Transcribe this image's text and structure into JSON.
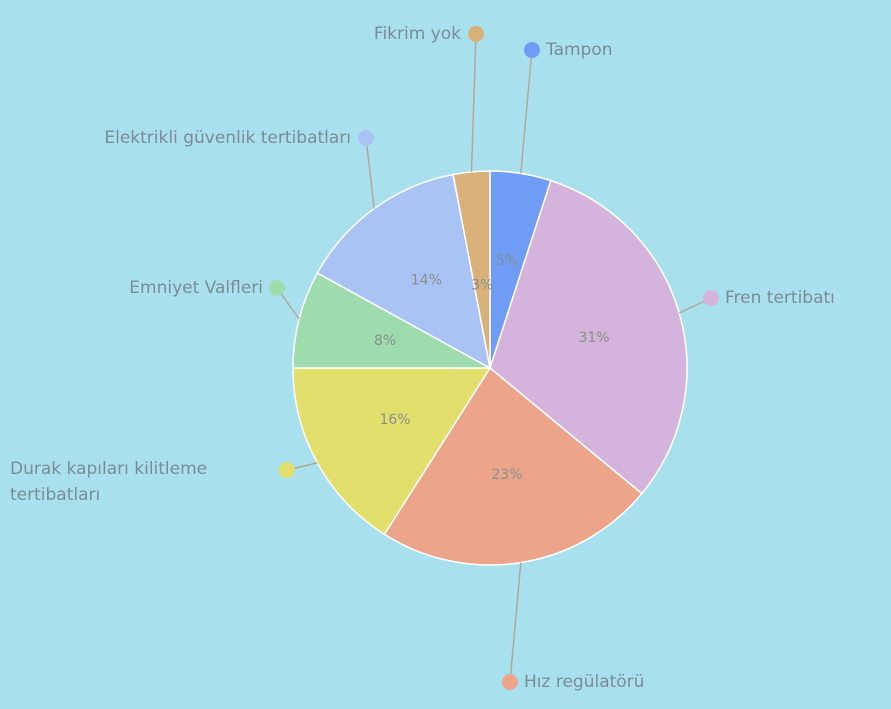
{
  "chart_data": {
    "type": "pie",
    "categories": [
      "Tampon",
      "Fren tertibatı",
      "Hız regülatörü",
      "Durak kapıları kilitleme tertibatları",
      "Emniyet Valfleri",
      "Elektrikli güvenlik tertibatları",
      "Fikrim yok"
    ],
    "values": [
      5,
      31,
      23,
      16,
      8,
      14,
      3
    ],
    "value_labels": [
      "5%",
      "31%",
      "23%",
      "16%",
      "8%",
      "14%",
      "3%"
    ],
    "colors": [
      "#6f9cf5",
      "#d4b4dc",
      "#eca58a",
      "#e2df6c",
      "#9edcae",
      "#a9c3f4",
      "#d8b27a"
    ]
  }
}
